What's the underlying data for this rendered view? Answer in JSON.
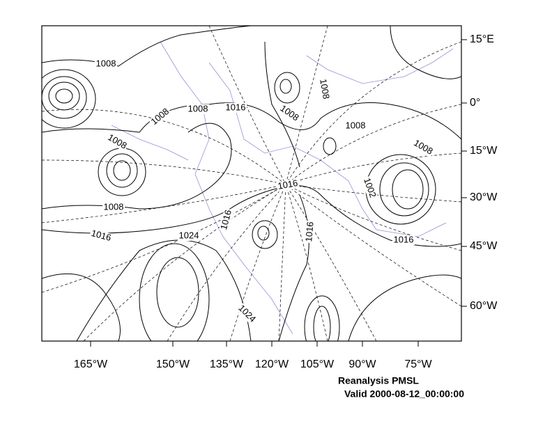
{
  "map": {
    "title": "Reanalysis PMSL",
    "subtitle": "Valid 2000-08-12_00:00:00",
    "lat_labels": [
      "15°E",
      "0°",
      "15°W",
      "30°W",
      "45°W",
      "60°W"
    ],
    "lon_labels": [
      "165°W",
      "150°W",
      "135°W",
      "120°W",
      "105°W",
      "90°W",
      "75°W"
    ],
    "contour_labels": [
      1008,
      1008,
      1008,
      1016,
      1008,
      1008,
      1008,
      1008,
      1008,
      1016,
      1002,
      1008,
      1016,
      1016,
      1024,
      1016,
      1016,
      1024
    ]
  }
}
